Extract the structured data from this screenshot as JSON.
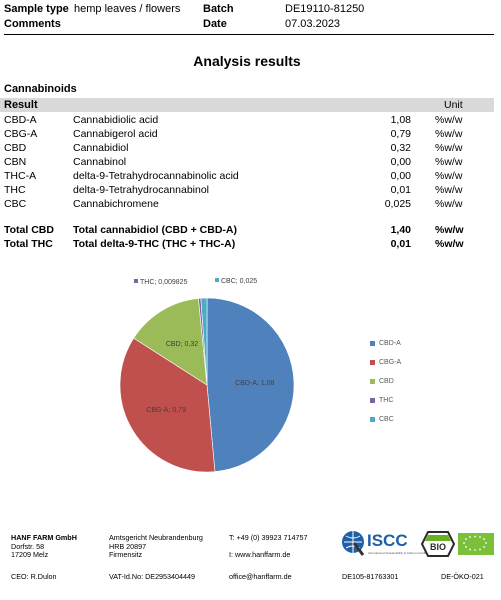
{
  "header": {
    "sample_type_label": "Sample type",
    "sample_type_value": "hemp leaves / flowers",
    "batch_label": "Batch",
    "batch_value": "DE19110-81250",
    "comments_label": "Comments",
    "date_label": "Date",
    "date_value": "07.03.2023"
  },
  "title": "Analysis results",
  "section_title": "Cannabinoids",
  "table": {
    "header_result": "Result",
    "header_unit": "Unit",
    "rows": [
      {
        "code": "CBD-A",
        "name": "Cannabidiolic acid",
        "value": "1,08",
        "unit": "%w/w"
      },
      {
        "code": "CBG-A",
        "name": "Cannabigerol acid",
        "value": "0,79",
        "unit": "%w/w"
      },
      {
        "code": "CBD",
        "name": "Cannabidiol",
        "value": "0,32",
        "unit": "%w/w"
      },
      {
        "code": "CBN",
        "name": "Cannabinol",
        "value": "0,00",
        "unit": "%w/w"
      },
      {
        "code": "THC-A",
        "name": "delta-9-Tetrahydrocannabinolic acid",
        "value": "0,00",
        "unit": "%w/w"
      },
      {
        "code": "THC",
        "name": "delta-9-Tetrahydrocannabinol",
        "value": "0,01",
        "unit": "%w/w"
      },
      {
        "code": "CBC",
        "name": "Cannabichromene",
        "value": "0,025",
        "unit": "%w/w"
      }
    ],
    "totals": [
      {
        "code": "Total CBD",
        "name": "Total cannabidiol (CBD + CBD-A)",
        "value": "1,40",
        "unit": "%w/w"
      },
      {
        "code": "Total THC",
        "name": "Total delta-9-THC (THC + THC-A)",
        "value": "0,01",
        "unit": "%w/w"
      }
    ]
  },
  "chart_data": {
    "type": "pie",
    "slices": [
      {
        "name": "CBD-A",
        "value": 1.08,
        "label": "CBD-A; 1,08",
        "color": "#4f81bd"
      },
      {
        "name": "CBG-A",
        "value": 0.79,
        "label": "CBG-A; 0,79",
        "color": "#c0504d"
      },
      {
        "name": "CBD",
        "value": 0.32,
        "label": "CBD; 0,32",
        "color": "#9bbb59"
      },
      {
        "name": "THC",
        "value": 0.009825,
        "label": "THC; 0,009825",
        "color": "#8064a2"
      },
      {
        "name": "CBC",
        "value": 0.025,
        "label": "CBC; 0,025",
        "color": "#4bacc6"
      }
    ],
    "legend": [
      "CBD-A",
      "CBG-A",
      "CBD",
      "THC",
      "CBC"
    ],
    "legend_position": "right"
  },
  "footer": {
    "company": "HANF FARM GmbH",
    "street": "Dorfstr. 58",
    "city": "17209 Melz",
    "court": "Amtsgericht Neubrandenburg",
    "hrb": "HRB 20897",
    "seat": "Firmensitz",
    "phone": "T: +49 (0) 39923 714757",
    "web": "I:  www.hanffarm.de",
    "ceo": "CEO: R.Dulon",
    "vat": "VAT-Id.No: DE2953404449",
    "email": "office@hanffarm.de",
    "cert_id": "DE105-81763301",
    "oko_id": "DE-ÖKO-021",
    "iscc_logo_text": "ISCC",
    "iscc_subtext": "International Sustainability & Carbon Certification",
    "bio_logo_text": "BIO"
  }
}
